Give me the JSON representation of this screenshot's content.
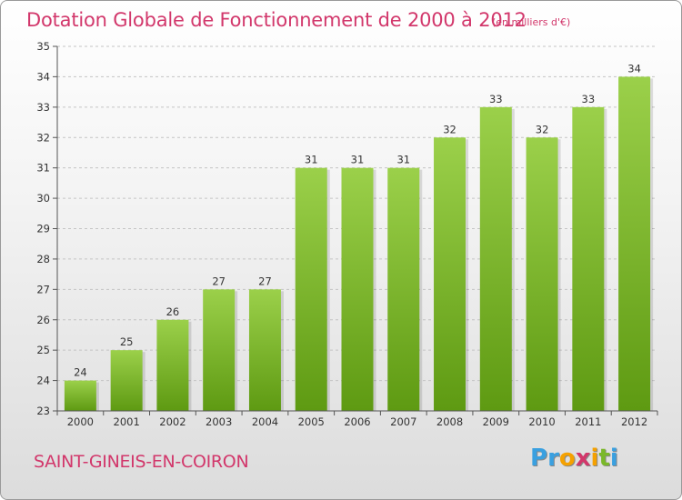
{
  "chart_data": {
    "type": "bar",
    "title": "Dotation Globale de Fonctionnement de 2000 à 2012",
    "unit": "(en milliers d'€)",
    "categories": [
      "2000",
      "2001",
      "2002",
      "2003",
      "2004",
      "2005",
      "2006",
      "2007",
      "2008",
      "2009",
      "2010",
      "2011",
      "2012"
    ],
    "values": [
      24,
      25,
      26,
      27,
      27,
      31,
      31,
      31,
      32,
      33,
      32,
      33,
      34
    ],
    "ylim": [
      23,
      35
    ],
    "yticks": [
      23,
      24,
      25,
      26,
      27,
      28,
      29,
      30,
      31,
      32,
      33,
      34,
      35
    ],
    "grid": true,
    "bar_color_top": "#9bd04a",
    "bar_color_bottom": "#5e9a12"
  },
  "commune": "SAINT-GINEIS-EN-COIRON",
  "logo": {
    "letters": [
      "P",
      "r",
      "o",
      "x",
      "i",
      "t",
      "i"
    ],
    "colors": [
      "#3aa0e0",
      "#3aa0e0",
      "#f5a100",
      "#d2376b",
      "#f5a100",
      "#7ab829",
      "#3aa0e0"
    ]
  },
  "colors": {
    "accent": "#d2376b"
  }
}
